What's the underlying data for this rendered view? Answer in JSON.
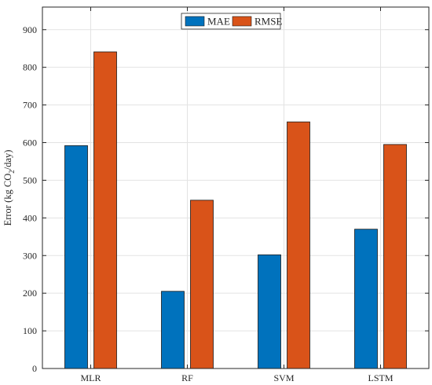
{
  "chart_data": {
    "type": "bar",
    "categories": [
      "MLR",
      "RF",
      "SVM",
      "LSTM"
    ],
    "series": [
      {
        "name": "MAE",
        "values": [
          592,
          205,
          302,
          370
        ],
        "color": "#0072BD"
      },
      {
        "name": "RMSE",
        "values": [
          841,
          447,
          655,
          595
        ],
        "color": "#D95319"
      }
    ],
    "ylabel": {
      "prefix": "Error (kg CO",
      "subscript": "2",
      "suffix": "/day)"
    },
    "xlabel": "",
    "ylim": [
      0,
      960
    ],
    "yticks": [
      0,
      100,
      200,
      300,
      400,
      500,
      600,
      700,
      800,
      900
    ],
    "grid": true,
    "legend_position": "top-center"
  }
}
